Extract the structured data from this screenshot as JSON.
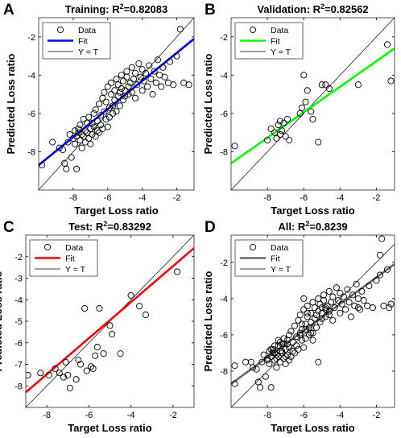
{
  "figure": {
    "panels": [
      {
        "letter": "A",
        "title_main": "Training: R",
        "title_exp": "2",
        "title_val": "=0.82083"
      },
      {
        "letter": "B",
        "title_main": "Validation: R",
        "title_exp": "2",
        "title_val": "=0.82562"
      },
      {
        "letter": "C",
        "title_main": "Test: R",
        "title_exp": "2",
        "title_val": "=0.83292"
      },
      {
        "letter": "D",
        "title_main": "All: R",
        "title_exp": "2",
        "title_val": "=0.8239"
      }
    ]
  },
  "chart_data": [
    {
      "type": "scatter",
      "panel": "A",
      "title": "Training: R2=0.82083",
      "xlabel": "Target Loss ratio",
      "ylabel": "Predicted Loss ratio",
      "xlim": [
        -10,
        -1
      ],
      "ylim": [
        -10,
        -1
      ],
      "xticks": [
        -8,
        -6,
        -4,
        -2
      ],
      "yticks": [
        -8,
        -6,
        -4,
        -2
      ],
      "legend": [
        "Data",
        "Fit",
        "Y = T"
      ],
      "legend_position": "top-left",
      "fit_color": "#0000ff",
      "fit_line": {
        "x": [
          -10,
          -1
        ],
        "y": [
          -8.7,
          -2.1
        ]
      },
      "points": [
        [
          -9.8,
          -8.7
        ],
        [
          -9.2,
          -7.5
        ],
        [
          -8.8,
          -7.8
        ],
        [
          -8.6,
          -7.9
        ],
        [
          -8.5,
          -8.6
        ],
        [
          -8.4,
          -8.9
        ],
        [
          -8.3,
          -7.5
        ],
        [
          -8.2,
          -7.1
        ],
        [
          -8.1,
          -8.3
        ],
        [
          -8.0,
          -7.3
        ],
        [
          -7.9,
          -6.9
        ],
        [
          -7.9,
          -7.6
        ],
        [
          -7.8,
          -7.2
        ],
        [
          -7.8,
          -8.9
        ],
        [
          -7.7,
          -6.8
        ],
        [
          -7.7,
          -7.0
        ],
        [
          -7.6,
          -7.4
        ],
        [
          -7.6,
          -6.6
        ],
        [
          -7.5,
          -7.1
        ],
        [
          -7.5,
          -7.8
        ],
        [
          -7.4,
          -6.3
        ],
        [
          -7.4,
          -7.2
        ],
        [
          -7.3,
          -6.9
        ],
        [
          -7.3,
          -7.5
        ],
        [
          -7.2,
          -6.5
        ],
        [
          -7.2,
          -7.0
        ],
        [
          -7.1,
          -7.3
        ],
        [
          -7.1,
          -6.2
        ],
        [
          -7.0,
          -6.8
        ],
        [
          -7.0,
          -7.6
        ],
        [
          -6.9,
          -6.5
        ],
        [
          -6.9,
          -7.1
        ],
        [
          -6.8,
          -6.0
        ],
        [
          -6.8,
          -6.7
        ],
        [
          -6.7,
          -7.2
        ],
        [
          -6.7,
          -5.8
        ],
        [
          -6.6,
          -6.4
        ],
        [
          -6.6,
          -6.9
        ],
        [
          -6.5,
          -5.5
        ],
        [
          -6.5,
          -7.0
        ],
        [
          -6.4,
          -6.1
        ],
        [
          -6.4,
          -6.6
        ],
        [
          -6.3,
          -5.2
        ],
        [
          -6.3,
          -6.8
        ],
        [
          -6.2,
          -5.9
        ],
        [
          -6.2,
          -4.9
        ],
        [
          -6.1,
          -6.3
        ],
        [
          -6.1,
          -5.4
        ],
        [
          -6.0,
          -6.7
        ],
        [
          -6.0,
          -4.6
        ],
        [
          -5.9,
          -5.7
        ],
        [
          -5.9,
          -6.2
        ],
        [
          -5.8,
          -5.0
        ],
        [
          -5.8,
          -4.4
        ],
        [
          -5.7,
          -5.6
        ],
        [
          -5.7,
          -6.0
        ],
        [
          -5.6,
          -4.8
        ],
        [
          -5.6,
          -5.3
        ],
        [
          -5.5,
          -4.2
        ],
        [
          -5.5,
          -5.9
        ],
        [
          -5.4,
          -5.1
        ],
        [
          -5.4,
          -4.5
        ],
        [
          -5.3,
          -4.9
        ],
        [
          -5.3,
          -5.6
        ],
        [
          -5.2,
          -4.0
        ],
        [
          -5.2,
          -4.7
        ],
        [
          -5.1,
          -5.3
        ],
        [
          -5.1,
          -4.3
        ],
        [
          -5.0,
          -4.8
        ],
        [
          -5.0,
          -5.1
        ],
        [
          -4.9,
          -4.1
        ],
        [
          -4.9,
          -3.8
        ],
        [
          -4.8,
          -4.6
        ],
        [
          -4.8,
          -5.0
        ],
        [
          -4.7,
          -4.4
        ],
        [
          -4.6,
          -3.6
        ],
        [
          -4.6,
          -4.9
        ],
        [
          -4.5,
          -4.2
        ],
        [
          -4.4,
          -3.9
        ],
        [
          -4.4,
          -5.2
        ],
        [
          -4.3,
          -4.5
        ],
        [
          -4.2,
          -3.4
        ],
        [
          -4.1,
          -4.1
        ],
        [
          -4.0,
          -4.8
        ],
        [
          -4.0,
          -3.7
        ],
        [
          -3.9,
          -4.3
        ],
        [
          -3.8,
          -3.9
        ],
        [
          -3.7,
          -4.6
        ],
        [
          -3.6,
          -3.5
        ],
        [
          -3.5,
          -4.2
        ],
        [
          -3.4,
          -5.0
        ],
        [
          -3.3,
          -3.8
        ],
        [
          -3.2,
          -4.4
        ],
        [
          -3.1,
          -3.2
        ],
        [
          -3.0,
          -4.0
        ],
        [
          -2.9,
          -4.6
        ],
        [
          -2.8,
          -3.6
        ],
        [
          -2.7,
          -4.1
        ],
        [
          -2.5,
          -4.4
        ],
        [
          -2.4,
          -3.3
        ],
        [
          -2.2,
          -4.5
        ],
        [
          -2.0,
          -3.0
        ],
        [
          -1.8,
          -1.6
        ],
        [
          -1.6,
          -4.4
        ],
        [
          -1.3,
          -4.5
        ]
      ]
    },
    {
      "type": "scatter",
      "panel": "B",
      "title": "Validation: R2=0.82562",
      "xlabel": "Target Loss ratio",
      "ylabel": "Predicted Loss ratio",
      "xlim": [
        -10,
        -1
      ],
      "ylim": [
        -10,
        -1
      ],
      "xticks": [
        -8,
        -6,
        -4,
        -2
      ],
      "yticks": [
        -8,
        -6,
        -4,
        -2
      ],
      "legend": [
        "Data",
        "Fit",
        "Y = T"
      ],
      "legend_position": "top-left",
      "fit_color": "#00ff00",
      "fit_line": {
        "x": [
          -10,
          -1
        ],
        "y": [
          -8.6,
          -2.6
        ]
      },
      "points": [
        [
          -9.8,
          -7.7
        ],
        [
          -8.0,
          -7.4
        ],
        [
          -7.8,
          -6.8
        ],
        [
          -7.6,
          -7.0
        ],
        [
          -7.5,
          -7.3
        ],
        [
          -7.4,
          -6.6
        ],
        [
          -7.3,
          -6.4
        ],
        [
          -7.3,
          -7.1
        ],
        [
          -7.2,
          -6.9
        ],
        [
          -7.1,
          -6.5
        ],
        [
          -7.0,
          -7.2
        ],
        [
          -6.9,
          -6.3
        ],
        [
          -6.8,
          -7.4
        ],
        [
          -6.2,
          -6.0
        ],
        [
          -6.1,
          -5.7
        ],
        [
          -6.0,
          -4.0
        ],
        [
          -5.9,
          -5.4
        ],
        [
          -5.8,
          -4.8
        ],
        [
          -5.6,
          -5.9
        ],
        [
          -5.5,
          -6.3
        ],
        [
          -5.2,
          -7.5
        ],
        [
          -5.0,
          -4.5
        ],
        [
          -4.8,
          -4.5
        ],
        [
          -4.6,
          -4.7
        ],
        [
          -3.0,
          -4.5
        ],
        [
          -1.7,
          -0.7
        ],
        [
          -1.4,
          -2.4
        ],
        [
          -1.2,
          -4.3
        ]
      ]
    },
    {
      "type": "scatter",
      "panel": "C",
      "title": "Test: R2=0.83292",
      "xlabel": "Target Loss ratio",
      "ylabel": "Predicted Loss ratio",
      "xlim": [
        -9,
        -1
      ],
      "ylim": [
        -9,
        -1
      ],
      "xticks": [
        -8,
        -6,
        -4,
        -2
      ],
      "yticks": [
        -8,
        -7,
        -6,
        -5,
        -4,
        -3,
        -2
      ],
      "legend": [
        "Data",
        "Fit",
        "Y = T"
      ],
      "legend_position": "top-left",
      "fit_color": "#ff0000",
      "fit_line": {
        "x": [
          -9,
          -1
        ],
        "y": [
          -8.3,
          -1.6
        ]
      },
      "points": [
        [
          -8.9,
          -7.5
        ],
        [
          -8.3,
          -7.4
        ],
        [
          -7.9,
          -7.5
        ],
        [
          -7.6,
          -7.2
        ],
        [
          -7.4,
          -7.4
        ],
        [
          -7.2,
          -7.6
        ],
        [
          -7.1,
          -6.9
        ],
        [
          -7.0,
          -7.5
        ],
        [
          -6.9,
          -8.1
        ],
        [
          -6.6,
          -7.7
        ],
        [
          -6.5,
          -6.8
        ],
        [
          -6.4,
          -7.0
        ],
        [
          -6.2,
          -4.4
        ],
        [
          -6.1,
          -7.3
        ],
        [
          -5.9,
          -7.1
        ],
        [
          -5.8,
          -7.2
        ],
        [
          -5.7,
          -6.6
        ],
        [
          -5.6,
          -6.2
        ],
        [
          -5.5,
          -4.4
        ],
        [
          -5.3,
          -6.5
        ],
        [
          -5.0,
          -5.2
        ],
        [
          -4.9,
          -5.6
        ],
        [
          -4.5,
          -6.5
        ],
        [
          -4.0,
          -3.8
        ],
        [
          -3.6,
          -4.3
        ],
        [
          -3.3,
          -4.7
        ],
        [
          -1.8,
          -2.7
        ]
      ]
    },
    {
      "type": "scatter",
      "panel": "D",
      "title": "All: R2=0.8239",
      "xlabel": "Target Loss ratio",
      "ylabel": "Predicted Loss ratio",
      "xlim": [
        -10,
        -1
      ],
      "ylim": [
        -10,
        -0.5
      ],
      "xticks": [
        -8,
        -6,
        -4,
        -2
      ],
      "yticks": [
        -8,
        -6,
        -4,
        -2
      ],
      "legend": [
        "Data",
        "Fit",
        "Y = T"
      ],
      "legend_position": "top-left",
      "fit_color": "#666666",
      "fit_line": {
        "x": [
          -10,
          -1
        ],
        "y": [
          -8.7,
          -2.1
        ]
      },
      "points": [
        [
          -9.8,
          -8.7
        ],
        [
          -9.8,
          -7.7
        ],
        [
          -9.2,
          -7.5
        ],
        [
          -8.9,
          -7.5
        ],
        [
          -8.8,
          -7.8
        ],
        [
          -8.6,
          -7.9
        ],
        [
          -8.5,
          -8.6
        ],
        [
          -8.4,
          -8.9
        ],
        [
          -8.3,
          -7.5
        ],
        [
          -8.2,
          -7.1
        ],
        [
          -8.1,
          -8.3
        ],
        [
          -8.0,
          -7.3
        ],
        [
          -8.0,
          -7.4
        ],
        [
          -7.9,
          -6.9
        ],
        [
          -7.9,
          -7.6
        ],
        [
          -7.8,
          -7.2
        ],
        [
          -7.8,
          -8.9
        ],
        [
          -7.8,
          -6.8
        ],
        [
          -7.7,
          -6.8
        ],
        [
          -7.7,
          -7.0
        ],
        [
          -7.6,
          -7.4
        ],
        [
          -7.6,
          -6.6
        ],
        [
          -7.6,
          -7.0
        ],
        [
          -7.5,
          -7.1
        ],
        [
          -7.5,
          -7.8
        ],
        [
          -7.5,
          -7.3
        ],
        [
          -7.4,
          -6.3
        ],
        [
          -7.4,
          -7.2
        ],
        [
          -7.4,
          -6.6
        ],
        [
          -7.3,
          -6.9
        ],
        [
          -7.3,
          -7.5
        ],
        [
          -7.3,
          -6.4
        ],
        [
          -7.2,
          -6.5
        ],
        [
          -7.2,
          -7.0
        ],
        [
          -7.2,
          -6.9
        ],
        [
          -7.1,
          -7.3
        ],
        [
          -7.1,
          -6.2
        ],
        [
          -7.1,
          -6.5
        ],
        [
          -7.0,
          -6.8
        ],
        [
          -7.0,
          -7.6
        ],
        [
          -7.0,
          -7.2
        ],
        [
          -6.9,
          -6.5
        ],
        [
          -6.9,
          -7.1
        ],
        [
          -6.9,
          -6.3
        ],
        [
          -6.8,
          -6.0
        ],
        [
          -6.8,
          -6.7
        ],
        [
          -6.8,
          -7.4
        ],
        [
          -6.7,
          -7.2
        ],
        [
          -6.7,
          -5.8
        ],
        [
          -6.6,
          -6.4
        ],
        [
          -6.6,
          -6.9
        ],
        [
          -6.5,
          -5.5
        ],
        [
          -6.5,
          -7.0
        ],
        [
          -6.4,
          -6.1
        ],
        [
          -6.4,
          -6.6
        ],
        [
          -6.3,
          -5.2
        ],
        [
          -6.3,
          -6.8
        ],
        [
          -6.2,
          -5.9
        ],
        [
          -6.2,
          -4.9
        ],
        [
          -6.2,
          -6.0
        ],
        [
          -6.1,
          -6.3
        ],
        [
          -6.1,
          -5.4
        ],
        [
          -6.1,
          -5.7
        ],
        [
          -6.0,
          -6.7
        ],
        [
          -6.0,
          -4.6
        ],
        [
          -6.0,
          -4.0
        ],
        [
          -5.9,
          -5.7
        ],
        [
          -5.9,
          -6.2
        ],
        [
          -5.9,
          -5.4
        ],
        [
          -5.8,
          -5.0
        ],
        [
          -5.8,
          -4.4
        ],
        [
          -5.8,
          -4.8
        ],
        [
          -5.7,
          -5.6
        ],
        [
          -5.7,
          -6.0
        ],
        [
          -5.6,
          -4.8
        ],
        [
          -5.6,
          -5.3
        ],
        [
          -5.6,
          -5.9
        ],
        [
          -5.5,
          -4.2
        ],
        [
          -5.5,
          -5.9
        ],
        [
          -5.5,
          -6.3
        ],
        [
          -5.4,
          -5.1
        ],
        [
          -5.4,
          -4.5
        ],
        [
          -5.3,
          -4.9
        ],
        [
          -5.3,
          -5.6
        ],
        [
          -5.2,
          -4.0
        ],
        [
          -5.2,
          -4.7
        ],
        [
          -5.2,
          -7.5
        ],
        [
          -5.1,
          -5.3
        ],
        [
          -5.1,
          -4.3
        ],
        [
          -5.0,
          -4.8
        ],
        [
          -5.0,
          -5.1
        ],
        [
          -5.0,
          -4.5
        ],
        [
          -4.9,
          -4.1
        ],
        [
          -4.9,
          -3.8
        ],
        [
          -4.8,
          -4.6
        ],
        [
          -4.8,
          -5.0
        ],
        [
          -4.8,
          -4.5
        ],
        [
          -4.7,
          -4.4
        ],
        [
          -4.6,
          -3.6
        ],
        [
          -4.6,
          -4.9
        ],
        [
          -4.6,
          -4.7
        ],
        [
          -4.5,
          -4.2
        ],
        [
          -4.4,
          -3.9
        ],
        [
          -4.4,
          -5.2
        ],
        [
          -4.3,
          -4.5
        ],
        [
          -4.2,
          -3.4
        ],
        [
          -4.1,
          -4.1
        ],
        [
          -4.0,
          -4.8
        ],
        [
          -4.0,
          -3.7
        ],
        [
          -3.9,
          -4.3
        ],
        [
          -3.8,
          -3.9
        ],
        [
          -3.7,
          -4.6
        ],
        [
          -3.6,
          -3.5
        ],
        [
          -3.5,
          -4.2
        ],
        [
          -3.4,
          -5.0
        ],
        [
          -3.3,
          -3.8
        ],
        [
          -3.2,
          -4.4
        ],
        [
          -3.1,
          -3.2
        ],
        [
          -3.0,
          -4.0
        ],
        [
          -3.0,
          -4.5
        ],
        [
          -2.9,
          -4.6
        ],
        [
          -2.8,
          -3.6
        ],
        [
          -2.7,
          -4.1
        ],
        [
          -2.5,
          -4.4
        ],
        [
          -2.4,
          -3.3
        ],
        [
          -2.2,
          -4.5
        ],
        [
          -2.0,
          -3.0
        ],
        [
          -1.8,
          -1.6
        ],
        [
          -1.8,
          -2.7
        ],
        [
          -1.7,
          -0.7
        ],
        [
          -1.6,
          -4.4
        ],
        [
          -1.4,
          -2.4
        ],
        [
          -1.3,
          -4.5
        ],
        [
          -1.2,
          -4.3
        ]
      ]
    }
  ]
}
